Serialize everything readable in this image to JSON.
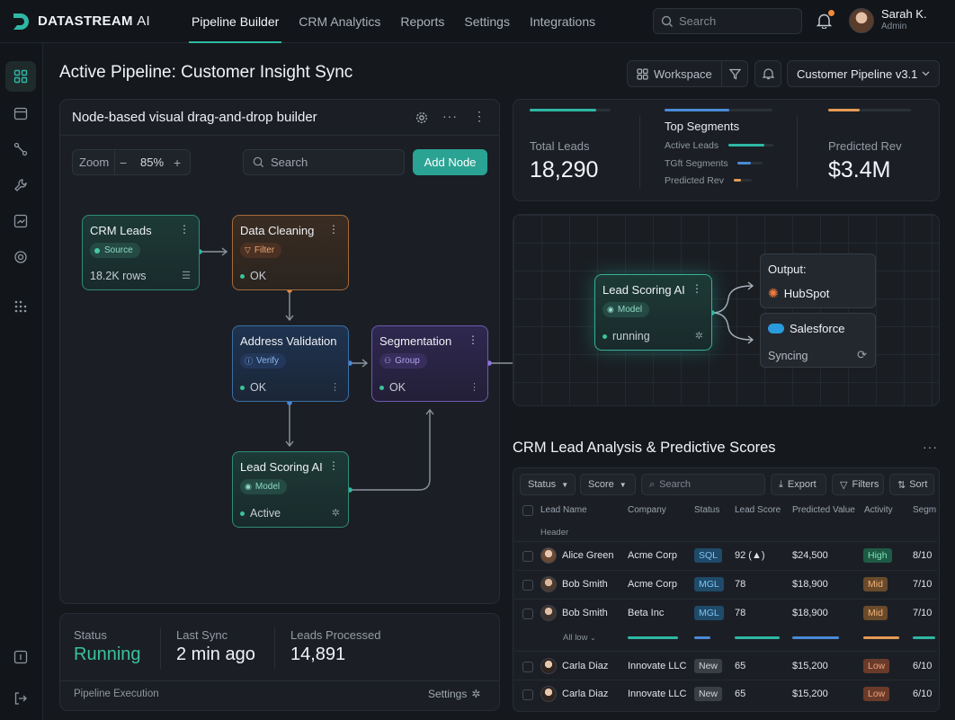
{
  "app": {
    "brand": "DATASTREAM",
    "brand_suffix": "AI"
  },
  "nav": [
    "Pipeline Builder",
    "CRM Analytics",
    "Reports",
    "Settings",
    "Integrations"
  ],
  "search": {
    "placeholder": "Search"
  },
  "user": {
    "name": "Sarah K.",
    "role": "Admin"
  },
  "page": {
    "title": "Active Pipeline: Customer Insight Sync"
  },
  "header_actions": {
    "workspace": "Workspace",
    "pipeline_select": "Customer Pipeline v3.1"
  },
  "builder": {
    "title": "Node-based visual drag-and-drop builder",
    "zoom_label": "Zoom",
    "zoom_value": "85%",
    "search_placeholder": "Search",
    "add_node": "Add Node",
    "nodes": {
      "crm_leads": {
        "title": "CRM Leads",
        "badge": "Source",
        "status": "18.2K rows"
      },
      "data_cleaning": {
        "title": "Data Cleaning",
        "badge": "Filter",
        "status": "OK"
      },
      "address_validation": {
        "title": "Address Validation",
        "badge": "Verify",
        "status": "OK"
      },
      "segmentation": {
        "title": "Segmentation",
        "badge": "Group",
        "status": "OK"
      },
      "lead_scoring": {
        "title": "Lead Scoring AI",
        "badge": "Model",
        "status": "Active"
      }
    }
  },
  "status_panel": {
    "status_label": "Status",
    "status_value": "Running",
    "last_sync_label": "Last Sync",
    "last_sync_value": "2 min ago",
    "leads_label": "Leads Processed",
    "leads_value": "14,891",
    "footer_left": "Pipeline Execution",
    "footer_right": "Settings"
  },
  "kpis": {
    "total_leads_label": "Total Leads",
    "total_leads_value": "18,290",
    "segments_title": "Top Segments",
    "segments": [
      {
        "label": "Active Leads",
        "level": 0.8
      },
      {
        "label": "TGft Segments",
        "level": 0.55
      },
      {
        "label": "Predicted Rev",
        "level": 0.4
      }
    ],
    "predicted_rev_label": "Predicted Rev",
    "predicted_rev_value": "$3.4M"
  },
  "flow": {
    "node_title": "Lead Scoring AI",
    "node_badge": "Model",
    "node_status": "running",
    "output_label": "Output:",
    "output_1": "HubSpot",
    "output_2": "Salesforce",
    "output_2_status": "Syncing"
  },
  "table": {
    "title": "CRM Lead Analysis & Predictive Scores",
    "toolbar": {
      "status": "Status",
      "score": "Score",
      "search": "Search",
      "export": "Export",
      "filters": "Filters",
      "sort": "Sort"
    },
    "columns": [
      "Lead Name",
      "Company",
      "Status",
      "Lead Score",
      "Predicted Value",
      "Activity",
      "Segm"
    ],
    "header_row": "Header",
    "all_label": "All low",
    "rows": [
      {
        "name": "Alice Green",
        "company": "Acme Corp",
        "status": "SQL",
        "score": "92 (▲)",
        "value": "$24,500",
        "activity": "High",
        "seg": "8/10"
      },
      {
        "name": "Bob Smith",
        "company": "Acme Corp",
        "status": "MGL",
        "score": "78",
        "value": "$18,900",
        "activity": "Mid",
        "seg": "7/10"
      },
      {
        "name": "Bob Smith",
        "company": "Beta Inc",
        "status": "MGL",
        "score": "78",
        "value": "$18,900",
        "activity": "Mid",
        "seg": "7/10"
      },
      {
        "name": "Carla Diaz",
        "company": "Innovate LLC",
        "status": "New",
        "score": "65",
        "value": "$15,200",
        "activity": "Low",
        "seg": "6/10"
      },
      {
        "name": "Carla Diaz",
        "company": "Innovate LLC",
        "status": "New",
        "score": "65",
        "value": "$15,200",
        "activity": "Low",
        "seg": "6/10"
      }
    ]
  },
  "colors": {
    "accent": "#2fb7a5",
    "running": "#3cc29a"
  }
}
